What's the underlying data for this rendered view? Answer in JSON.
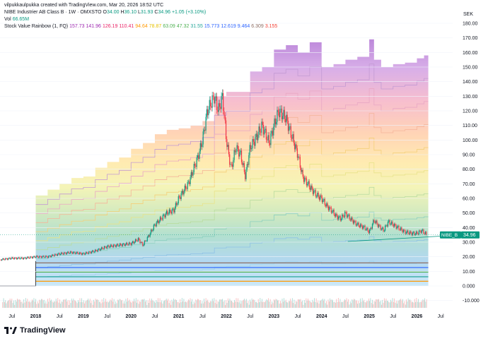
{
  "credit": "vilpukkaulpukka created with TradingView.com, Mar 20, 2026 18:52 UTC",
  "legend": {
    "symbol": "NIBE Industrier AB Class B · 1W · OMXSTO",
    "o_label": "O",
    "o": "34.00",
    "h_label": "H",
    "h": "36.10",
    "l_label": "L",
    "l": "31.93",
    "c_label": "C",
    "c": "34.96",
    "change": "+1.05 (+3.10%)",
    "vol_label": "Vol",
    "vol": "66.65M",
    "indicator": "Stock Value Rainbow (1, FQ)",
    "rainbow_values": [
      "157.73",
      "141.96",
      "126.19",
      "110.41",
      "94.64",
      "78.87",
      "63.09",
      "47.32",
      "31.55",
      "15.773",
      "12.619",
      "9.464",
      "6.309",
      "3.155"
    ],
    "rainbow_colors": [
      "#9c27b0",
      "#9c27b0",
      "#e91e63",
      "#e91e63",
      "#ff9800",
      "#e6c200",
      "#4caf50",
      "#4caf50",
      "#26a69a",
      "#2962ff",
      "#2962ff",
      "#2962ff",
      "#8d6e63",
      "#f44336"
    ]
  },
  "currency": "SEK",
  "price_tag": {
    "symbol": "NIBE_B",
    "value": "34.96",
    "color": "#089981"
  },
  "brand": "TradingView",
  "chart_data": {
    "type": "candlestick",
    "title": "NIBE Industrier AB Class B · 1W · OMXSTO",
    "y_axis": {
      "unit": "SEK",
      "range": [
        -10,
        180
      ],
      "ticks": [
        "180.00",
        "170.00",
        "160.00",
        "150.00",
        "140.00",
        "130.00",
        "120.00",
        "110.00",
        "100.00",
        "90.00",
        "80.00",
        "70.00",
        "60.00",
        "50.00",
        "40.00",
        "30.00",
        "20.00",
        "10.00",
        "0.000",
        "-10.000"
      ]
    },
    "x_axis": {
      "ticks": [
        "Jul",
        "2018",
        "Jul",
        "2019",
        "Jul",
        "2020",
        "Jul",
        "2021",
        "Jul",
        "2022",
        "Jul",
        "2023",
        "Jul",
        "2024",
        "Jul",
        "2025",
        "Jul",
        "2026",
        "Jul"
      ],
      "range": [
        "2017-04",
        "2026-09"
      ]
    },
    "price_path": [
      [
        2017.25,
        18
      ],
      [
        2017.5,
        19
      ],
      [
        2017.75,
        19
      ],
      [
        2018.0,
        20
      ],
      [
        2018.25,
        20
      ],
      [
        2018.5,
        22
      ],
      [
        2018.75,
        23
      ],
      [
        2019.0,
        22
      ],
      [
        2019.25,
        24
      ],
      [
        2019.5,
        27
      ],
      [
        2019.75,
        28
      ],
      [
        2020.0,
        29
      ],
      [
        2020.15,
        32
      ],
      [
        2020.25,
        28
      ],
      [
        2020.4,
        36
      ],
      [
        2020.5,
        42
      ],
      [
        2020.75,
        50
      ],
      [
        2020.9,
        52
      ],
      [
        2021.0,
        60
      ],
      [
        2021.2,
        70
      ],
      [
        2021.4,
        88
      ],
      [
        2021.5,
        100
      ],
      [
        2021.6,
        120
      ],
      [
        2021.75,
        130
      ],
      [
        2021.83,
        120
      ],
      [
        2021.92,
        130
      ],
      [
        2022.0,
        100
      ],
      [
        2022.1,
        80
      ],
      [
        2022.2,
        95
      ],
      [
        2022.3,
        90
      ],
      [
        2022.4,
        75
      ],
      [
        2022.5,
        95
      ],
      [
        2022.6,
        100
      ],
      [
        2022.75,
        110
      ],
      [
        2022.9,
        98
      ],
      [
        2023.0,
        110
      ],
      [
        2023.1,
        120
      ],
      [
        2023.25,
        115
      ],
      [
        2023.4,
        100
      ],
      [
        2023.5,
        90
      ],
      [
        2023.6,
        75
      ],
      [
        2023.75,
        68
      ],
      [
        2023.9,
        62
      ],
      [
        2024.0,
        60
      ],
      [
        2024.1,
        55
      ],
      [
        2024.2,
        52
      ],
      [
        2024.3,
        48
      ],
      [
        2024.4,
        46
      ],
      [
        2024.5,
        50
      ],
      [
        2024.6,
        46
      ],
      [
        2024.75,
        42
      ],
      [
        2024.9,
        40
      ],
      [
        2025.0,
        37
      ],
      [
        2025.1,
        45
      ],
      [
        2025.2,
        41
      ],
      [
        2025.3,
        38
      ],
      [
        2025.4,
        44
      ],
      [
        2025.5,
        42
      ],
      [
        2025.6,
        40
      ],
      [
        2025.75,
        37
      ],
      [
        2025.9,
        36
      ],
      [
        2026.0,
        36
      ],
      [
        2026.1,
        38
      ],
      [
        2026.21,
        34.96
      ]
    ],
    "current": {
      "open": 34.0,
      "high": 36.1,
      "low": 31.93,
      "close": 34.96,
      "change": 1.05,
      "change_pct": 3.1
    },
    "volume_last": "66.65M",
    "rainbow_bands": [
      {
        "name": "band-1",
        "color": "#9c27b0"
      },
      {
        "name": "band-2",
        "color": "#ba68c8"
      },
      {
        "name": "band-3",
        "color": "#f48fb1"
      },
      {
        "name": "band-4",
        "color": "#ffab91"
      },
      {
        "name": "band-5",
        "color": "#ffe082"
      },
      {
        "name": "band-6",
        "color": "#fff59d"
      },
      {
        "name": "band-7",
        "color": "#c5e1a5"
      },
      {
        "name": "band-8",
        "color": "#80cbc4"
      },
      {
        "name": "band-9",
        "color": "#90caf9"
      },
      {
        "name": "band-10",
        "color": "#b3e5fc"
      }
    ],
    "rainbow_top_path": [
      [
        2017.25,
        null
      ],
      [
        2018.0,
        62
      ],
      [
        2018.25,
        66
      ],
      [
        2018.5,
        70
      ],
      [
        2018.75,
        74
      ],
      [
        2019.0,
        75
      ],
      [
        2019.25,
        81
      ],
      [
        2019.5,
        85
      ],
      [
        2019.75,
        88
      ],
      [
        2020.0,
        94
      ],
      [
        2020.25,
        98
      ],
      [
        2020.5,
        104
      ],
      [
        2020.75,
        107
      ],
      [
        2021.0,
        108
      ],
      [
        2021.25,
        110
      ],
      [
        2021.5,
        113
      ],
      [
        2021.75,
        130
      ],
      [
        2022.0,
        133
      ],
      [
        2022.25,
        133
      ],
      [
        2022.5,
        147
      ],
      [
        2022.75,
        150
      ],
      [
        2023.0,
        162
      ],
      [
        2023.25,
        165
      ],
      [
        2023.5,
        160
      ],
      [
        2023.75,
        167
      ],
      [
        2024.0,
        150
      ],
      [
        2024.25,
        152
      ],
      [
        2024.5,
        155
      ],
      [
        2024.75,
        157
      ],
      [
        2025.0,
        169
      ],
      [
        2025.1,
        155
      ],
      [
        2025.25,
        150
      ],
      [
        2025.5,
        152
      ],
      [
        2025.75,
        153
      ],
      [
        2026.0,
        156
      ],
      [
        2026.15,
        158
      ]
    ]
  }
}
